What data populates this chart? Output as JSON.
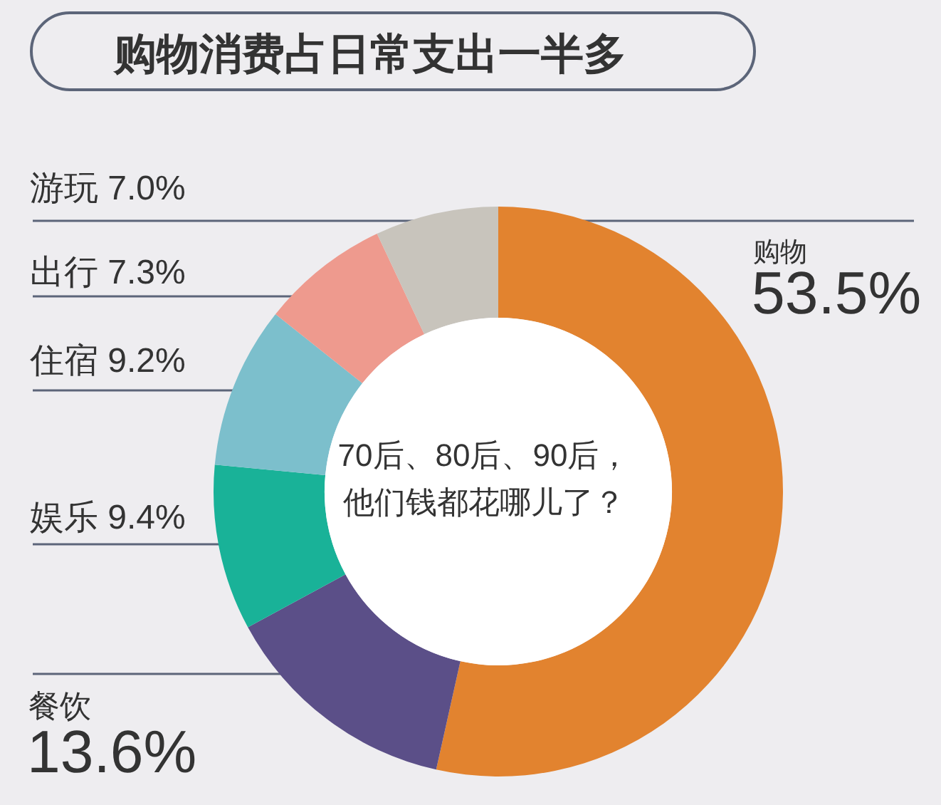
{
  "chart_data": {
    "type": "donut",
    "title": "购物消费占日常支出一半多",
    "categories": [
      "购物",
      "餐饮",
      "娱乐",
      "住宿",
      "出行",
      "游玩"
    ],
    "values": [
      53.5,
      13.6,
      9.4,
      9.2,
      7.3,
      7.0
    ],
    "value_labels": [
      "53.5%",
      "13.6%",
      "9.4%",
      "9.2%",
      "7.3%",
      "7.0%"
    ],
    "colors": [
      "#e2832f",
      "#5b4f88",
      "#19b298",
      "#7cbfcc",
      "#ee9a8e",
      "#c8c4bc"
    ],
    "annotations": [
      "70后、80后、90后，",
      "他们钱都花哪儿了？"
    ]
  }
}
